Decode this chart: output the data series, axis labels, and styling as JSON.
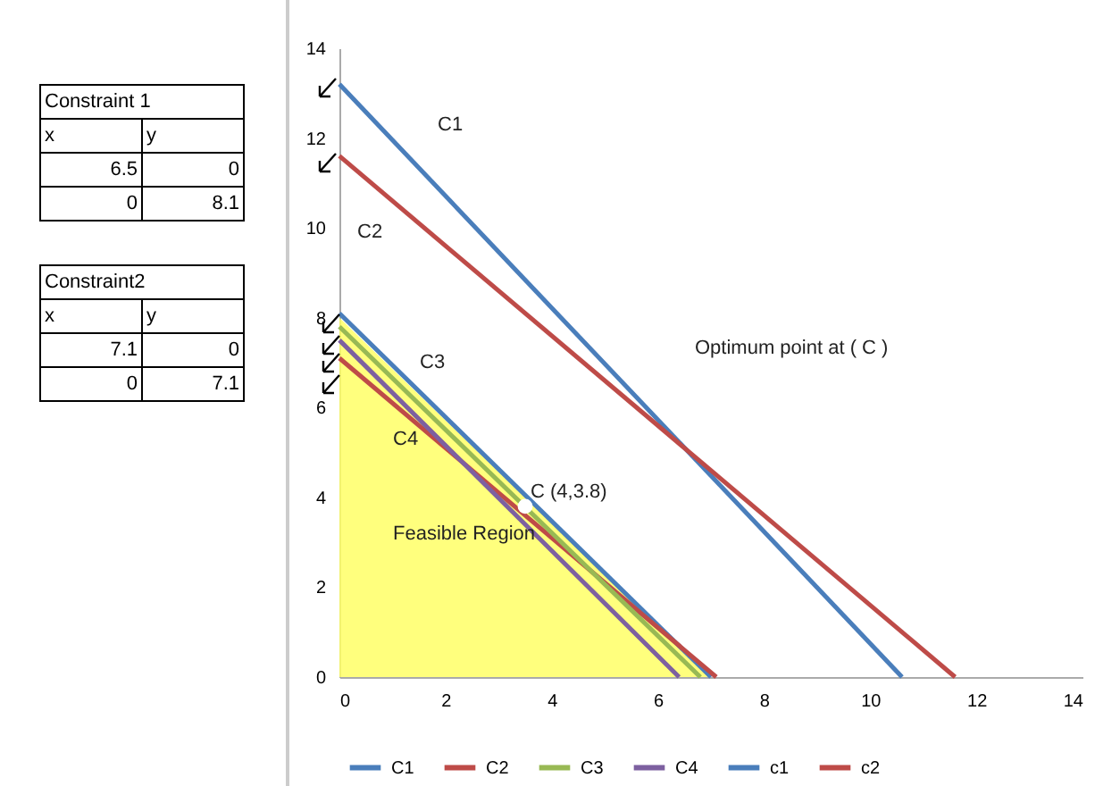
{
  "chart_data": [
    {
      "type": "other",
      "title": "Constraint 1",
      "annotations": [
        "x",
        "y",
        "6.5",
        "0",
        "0",
        "8.1"
      ]
    },
    {
      "type": "other",
      "title": "Constraint2",
      "annotations": [
        "x",
        "y",
        "7.1",
        "0",
        "0",
        "7.1"
      ]
    },
    {
      "type": "line",
      "xlim": [
        0,
        14
      ],
      "ylim": [
        0,
        14
      ],
      "xticks": [
        0,
        2,
        4,
        6,
        8,
        10,
        12,
        14
      ],
      "yticks": [
        0,
        2,
        4,
        6,
        8,
        10,
        12,
        14
      ],
      "grid": false,
      "legend": "bottom",
      "series": [
        {
          "type": "area",
          "color": "#ffff66",
          "x": [
            0,
            7
          ],
          "values": [
            8.0,
            0
          ]
        },
        {
          "name": "C1",
          "color": "#4a7ebb",
          "x": [
            0,
            7
          ],
          "values": [
            8.1,
            0
          ]
        },
        {
          "name": "C2",
          "color": "#be4b48",
          "x": [
            0,
            7.1
          ],
          "values": [
            7.1,
            0
          ]
        },
        {
          "name": "C3",
          "color": "#98b954",
          "x": [
            0,
            6.8
          ],
          "values": [
            7.8,
            0
          ]
        },
        {
          "name": "C4",
          "color": "#7d60a0",
          "x": [
            0,
            6.4
          ],
          "values": [
            7.5,
            0
          ]
        },
        {
          "name": "c1",
          "color": "#4a7ebb",
          "x": [
            0,
            10.6
          ],
          "values": [
            13.2,
            0
          ]
        },
        {
          "name": "c2",
          "color": "#be4b48",
          "x": [
            0,
            11.6
          ],
          "values": [
            11.6,
            0
          ]
        },
        {
          "type": "scatter",
          "color": "#ffffff",
          "x": [
            3.5
          ],
          "values": [
            3.8
          ]
        }
      ],
      "annotations": [
        "C1",
        "C2",
        "C3",
        "C4",
        {
          "text": "C (4,3.8)",
          "x": 3.5,
          "y": 3.8
        },
        "Feasible Region",
        "Optimum point at ( C )"
      ]
    }
  ]
}
